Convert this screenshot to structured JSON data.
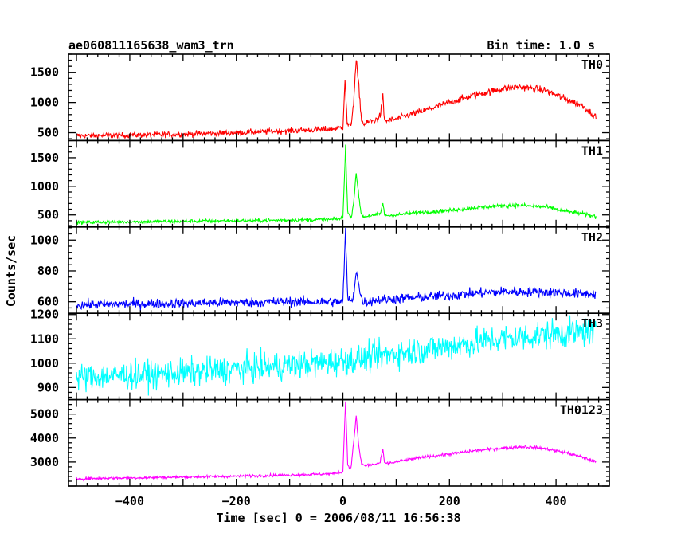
{
  "title": "ae060811165638_wam3_trn",
  "bin_time": "Bin time: 1.0 s",
  "chart_data": {
    "type": "line",
    "title": "ae060811165638_wam3_trn",
    "xlabel": "Time [sec] 0 = 2006/08/11 16:56:38",
    "ylabel": "Counts/sec",
    "xlim": [
      -515,
      500
    ],
    "x_ticks": [
      -400,
      -200,
      0,
      200,
      400
    ],
    "x_tick_labels": [
      "−400",
      "−200",
      "0",
      "200",
      "400"
    ],
    "grid": false,
    "panels": [
      {
        "name": "TH0",
        "color": "#ff0000",
        "ylim": [
          370,
          1800
        ],
        "y_ticks": [
          500,
          1000,
          1500
        ],
        "y_tick_labels": [
          "500",
          "1000",
          "1500"
        ],
        "x": [
          -500,
          -400,
          -300,
          -200,
          -100,
          -20,
          0,
          4,
          8,
          15,
          20,
          25,
          30,
          35,
          40,
          45,
          50,
          60,
          70,
          75,
          78,
          85,
          100,
          150,
          200,
          250,
          300,
          330,
          380,
          420,
          450,
          475
        ],
        "values": [
          450,
          460,
          475,
          500,
          530,
          560,
          590,
          1400,
          650,
          600,
          1000,
          1700,
          1250,
          700,
          640,
          660,
          690,
          700,
          780,
          1100,
          700,
          700,
          730,
          860,
          1000,
          1130,
          1230,
          1260,
          1200,
          1050,
          950,
          760
        ],
        "noise": 45
      },
      {
        "name": "TH1",
        "color": "#00ff00",
        "ylim": [
          290,
          1800
        ],
        "y_ticks": [
          500,
          1000,
          1500
        ],
        "y_tick_labels": [
          "500",
          "1000",
          "1500"
        ],
        "x": [
          -500,
          -400,
          -300,
          -200,
          -100,
          -20,
          0,
          5,
          9,
          15,
          20,
          25,
          30,
          35,
          40,
          45,
          50,
          60,
          70,
          75,
          78,
          85,
          100,
          150,
          200,
          250,
          300,
          330,
          380,
          420,
          450,
          475
        ],
        "values": [
          370,
          380,
          390,
          400,
          410,
          420,
          440,
          1700,
          550,
          440,
          700,
          1250,
          800,
          500,
          470,
          480,
          490,
          490,
          520,
          700,
          510,
          490,
          500,
          550,
          580,
          630,
          660,
          670,
          640,
          560,
          520,
          470
        ],
        "noise": 30
      },
      {
        "name": "TH2",
        "color": "#0000ff",
        "ylim": [
          525,
          1085
        ],
        "y_ticks": [
          600,
          800,
          1000
        ],
        "y_tick_labels": [
          "600",
          "800",
          "1000"
        ],
        "x": [
          -500,
          -400,
          -300,
          -200,
          -100,
          -20,
          0,
          5,
          9,
          15,
          20,
          25,
          30,
          35,
          40,
          45,
          60,
          100,
          150,
          200,
          250,
          300,
          350,
          400,
          450,
          475
        ],
        "values": [
          580,
          585,
          590,
          595,
          600,
          600,
          600,
          1060,
          620,
          600,
          640,
          810,
          700,
          620,
          600,
          600,
          610,
          620,
          630,
          640,
          655,
          665,
          665,
          660,
          650,
          650
        ],
        "noise": 30
      },
      {
        "name": "TH3",
        "color": "#00ffff",
        "ylim": [
          850,
          1205
        ],
        "y_ticks": [
          900,
          1000,
          1100,
          1200
        ],
        "y_tick_labels": [
          "900",
          "1000",
          "1100",
          "1200"
        ],
        "x": [
          -500,
          -400,
          -300,
          -200,
          -100,
          0,
          100,
          200,
          300,
          400,
          475
        ],
        "values": [
          940,
          950,
          960,
          975,
          990,
          1010,
          1040,
          1070,
          1100,
          1120,
          1130
        ],
        "noise": 55
      },
      {
        "name": "TH0123",
        "color": "#ff00ff",
        "ylim": [
          2000,
          5600
        ],
        "y_ticks": [
          3000,
          4000,
          5000
        ],
        "y_tick_labels": [
          "3000",
          "4000",
          "5000"
        ],
        "x": [
          -500,
          -400,
          -300,
          -200,
          -100,
          -20,
          0,
          5,
          9,
          15,
          20,
          25,
          30,
          35,
          40,
          45,
          50,
          60,
          70,
          75,
          78,
          85,
          100,
          150,
          200,
          250,
          300,
          340,
          380,
          420,
          450,
          475
        ],
        "values": [
          2300,
          2340,
          2370,
          2410,
          2460,
          2510,
          2600,
          5550,
          2900,
          2700,
          3800,
          4900,
          3600,
          2950,
          2850,
          2870,
          2880,
          2900,
          2980,
          3550,
          2950,
          2950,
          3000,
          3200,
          3330,
          3480,
          3580,
          3640,
          3560,
          3380,
          3200,
          3000
        ],
        "noise": 55
      }
    ]
  }
}
